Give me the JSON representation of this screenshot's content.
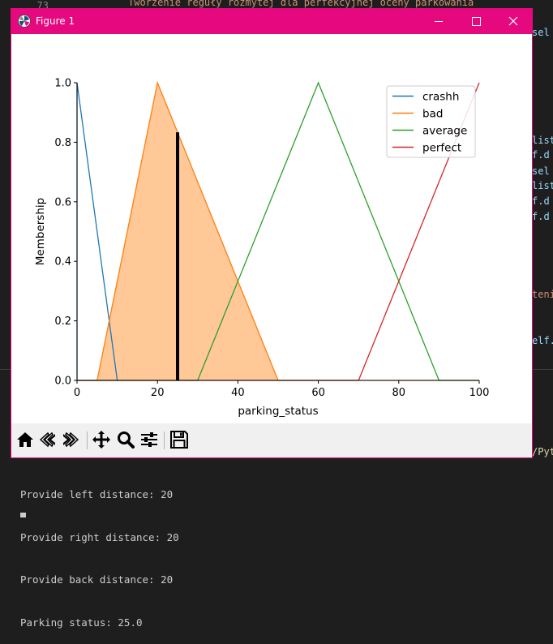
{
  "editor": {
    "line_number": "73",
    "top_code": "Tworzenie reguły rozmytej dla perfekcyjnej oceny parkowania",
    "right_fragments": [
      {
        "text": "sel",
        "top": 0,
        "color": "blue"
      },
      {
        "text": "list",
        "top": 0,
        "color": "blue"
      },
      {
        "text": "f.d",
        "top": 0,
        "color": "blue"
      },
      {
        "text": "sel",
        "top": 0,
        "color": "blue"
      },
      {
        "text": "list",
        "top": 0,
        "color": "blue"
      },
      {
        "text": "f.d",
        "top": 0,
        "color": "blue"
      },
      {
        "text": "f.d",
        "top": 0,
        "color": "blue"
      },
      {
        "text": "teni",
        "top": 0,
        "color": "orange"
      },
      {
        "text": "elf.",
        "top": 0,
        "color": "blue"
      }
    ]
  },
  "terminal": {
    "path_fragment": "/Pyt",
    "lines": [
      "Provide left distance: 20",
      "Provide right distance: 20",
      "Provide back distance: 20",
      "Parking status: 25.0"
    ]
  },
  "window": {
    "title": "Figure 1",
    "accent_color": "#e6087e",
    "controls": [
      "minimize",
      "maximize",
      "close"
    ]
  },
  "toolbar": {
    "tools": [
      "home-icon",
      "back-icon",
      "forward-icon",
      "pan-icon",
      "zoom-icon",
      "configure-subplots-icon",
      "save-icon"
    ]
  },
  "chart_data": {
    "type": "line",
    "title": "",
    "xlabel": "parking_status",
    "ylabel": "Membership",
    "xlim": [
      0,
      100
    ],
    "ylim": [
      0,
      1
    ],
    "xticks": [
      "0",
      "20",
      "40",
      "60",
      "80",
      "100"
    ],
    "yticks": [
      "0.0",
      "0.2",
      "0.4",
      "0.6",
      "0.8",
      "1.0"
    ],
    "legend_position": "top-right",
    "grid": false,
    "series": [
      {
        "name": "crashh",
        "color": "#1f77b4",
        "x": [
          0,
          0,
          10
        ],
        "y": [
          0,
          1,
          0
        ]
      },
      {
        "name": "bad",
        "color": "#ff7f0e",
        "x": [
          0,
          5,
          20,
          50,
          100
        ],
        "y": [
          0,
          0,
          1,
          0,
          0
        ]
      },
      {
        "name": "average",
        "color": "#2ca02c",
        "x": [
          0,
          30,
          60,
          90,
          100
        ],
        "y": [
          0,
          0,
          1,
          0,
          0
        ]
      },
      {
        "name": "perfect",
        "color": "#d62728",
        "x": [
          0,
          70,
          100
        ],
        "y": [
          0,
          0,
          1
        ]
      }
    ],
    "fill": {
      "series": "bad",
      "color": "#ffc896",
      "x": [
        5,
        20,
        50
      ],
      "y": [
        0,
        1,
        0
      ]
    },
    "output_marker": {
      "x": 25,
      "y": 0.8333,
      "color": "#000000"
    }
  }
}
